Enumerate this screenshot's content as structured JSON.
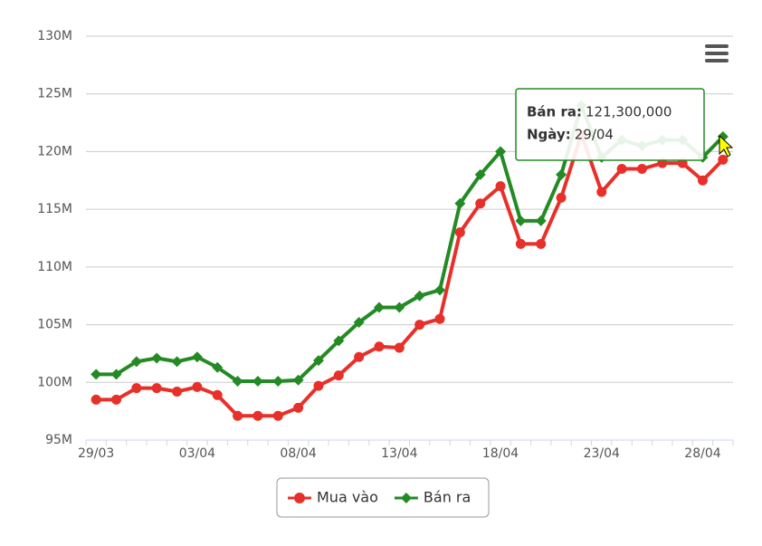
{
  "chart_data": {
    "type": "line",
    "categories": [
      "29/03",
      null,
      null,
      null,
      null,
      "03/04",
      null,
      null,
      null,
      null,
      "08/04",
      null,
      null,
      null,
      null,
      "13/04",
      null,
      null,
      null,
      null,
      "18/04",
      null,
      null,
      null,
      null,
      "23/04",
      null,
      null,
      null,
      null,
      "28/04",
      null
    ],
    "series": [
      {
        "name": "Mua vào",
        "color": "#e8302a",
        "marker": "circle",
        "values": [
          98.5,
          98.5,
          99.5,
          99.5,
          99.2,
          99.6,
          98.9,
          97.1,
          97.1,
          97.1,
          97.8,
          99.7,
          100.6,
          102.2,
          103.1,
          103,
          105,
          105.5,
          113,
          115.5,
          117,
          112,
          112,
          116,
          121.5,
          116.5,
          118.5,
          118.5,
          119,
          119,
          117.5,
          119.3
        ]
      },
      {
        "name": "Bán ra",
        "color": "#238a24",
        "marker": "diamond",
        "values": [
          100.7,
          100.7,
          101.8,
          102.1,
          101.8,
          102.2,
          101.3,
          100.1,
          100.1,
          100.1,
          100.2,
          101.9,
          103.6,
          105.2,
          106.5,
          106.5,
          107.5,
          108,
          115.5,
          118,
          120,
          114,
          114,
          118,
          124,
          119.5,
          121,
          120.5,
          121,
          121,
          119.5,
          121.3
        ]
      }
    ],
    "ylim": [
      95,
      130
    ],
    "yticks": [
      {
        "value": 95,
        "label": "95M"
      },
      {
        "value": 100,
        "label": "100M"
      },
      {
        "value": 105,
        "label": "105M"
      },
      {
        "value": 110,
        "label": "110M"
      },
      {
        "value": 115,
        "label": "115M"
      },
      {
        "value": 120,
        "label": "120M"
      },
      {
        "value": 125,
        "label": "125M"
      },
      {
        "value": 130,
        "label": "130M"
      }
    ],
    "grid": true,
    "legend": "bottom",
    "tooltip": {
      "name_label": "Bán ra:",
      "value_label": "121,300,000",
      "date_title": "Ngày:",
      "date": "29/04"
    }
  }
}
